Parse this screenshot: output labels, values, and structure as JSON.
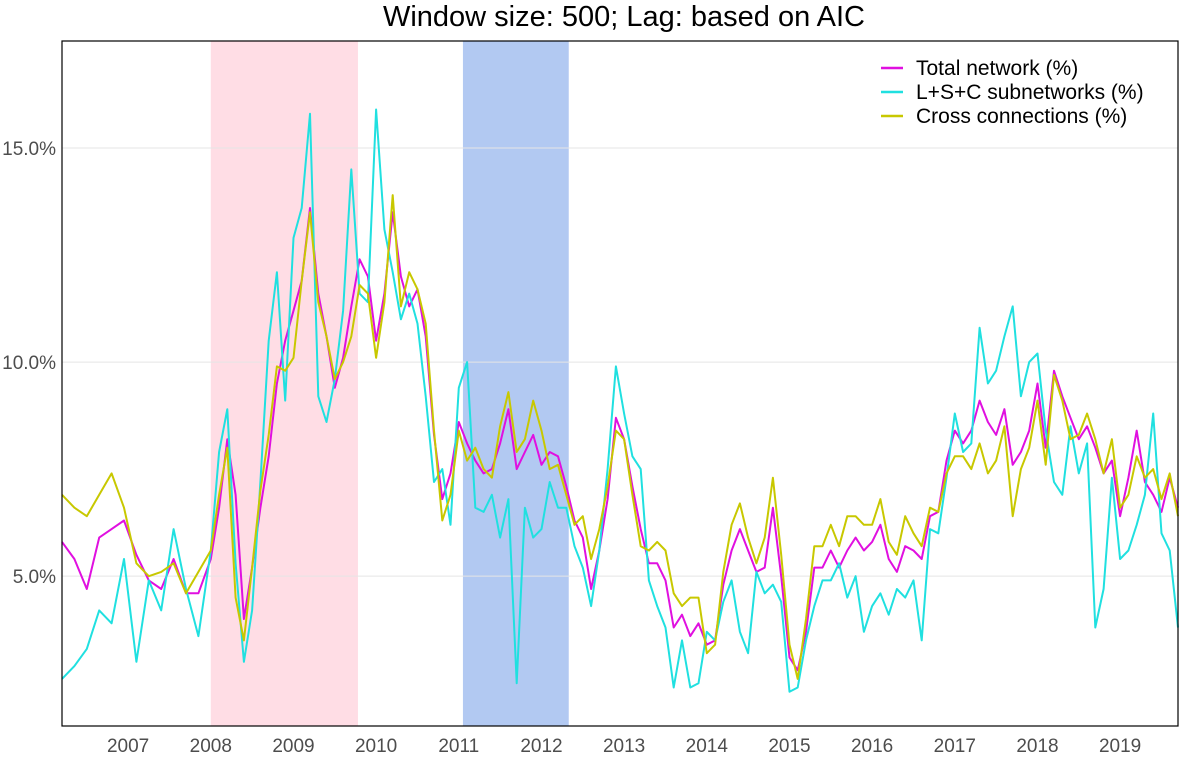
{
  "chart_data": {
    "type": "line",
    "title": "Window size: 500; Lag: based on AIC",
    "xlabel": "",
    "ylabel": "",
    "x_ticks": [
      "2007",
      "2008",
      "2009",
      "2010",
      "2011",
      "2012",
      "2013",
      "2014",
      "2015",
      "2016",
      "2017",
      "2018",
      "2019"
    ],
    "xlim": [
      2006.7,
      2020.2
    ],
    "ylim": [
      1.5,
      17.5
    ],
    "y_ticks": [
      {
        "value": 5,
        "label": "5.0%"
      },
      {
        "value": 10,
        "label": "10.0%"
      },
      {
        "value": 15,
        "label": "15.0%"
      }
    ],
    "grid": true,
    "legend_position": "top-right",
    "shaded_periods": [
      {
        "start": 2008.5,
        "end": 2010.28,
        "color": "#ffdde5"
      },
      {
        "start": 2011.55,
        "end": 2012.83,
        "color": "#b2c9f2"
      }
    ],
    "series": [
      {
        "name": "Total network (%)",
        "color": "#e010e0",
        "x": [
          2006.7,
          2006.85,
          2007.0,
          2007.15,
          2007.3,
          2007.45,
          2007.6,
          2007.75,
          2007.9,
          2008.05,
          2008.2,
          2008.35,
          2008.5,
          2008.6,
          2008.7,
          2008.8,
          2008.9,
          2009.0,
          2009.1,
          2009.2,
          2009.3,
          2009.4,
          2009.5,
          2009.6,
          2009.7,
          2009.8,
          2009.9,
          2010.0,
          2010.1,
          2010.2,
          2010.3,
          2010.4,
          2010.5,
          2010.6,
          2010.7,
          2010.8,
          2010.9,
          2011.0,
          2011.1,
          2011.2,
          2011.3,
          2011.4,
          2011.5,
          2011.6,
          2011.7,
          2011.8,
          2011.9,
          2012.0,
          2012.1,
          2012.2,
          2012.3,
          2012.4,
          2012.5,
          2012.6,
          2012.7,
          2012.8,
          2012.9,
          2013.0,
          2013.1,
          2013.2,
          2013.3,
          2013.4,
          2013.5,
          2013.6,
          2013.7,
          2013.8,
          2013.9,
          2014.0,
          2014.1,
          2014.2,
          2014.3,
          2014.4,
          2014.5,
          2014.6,
          2014.7,
          2014.8,
          2014.9,
          2015.0,
          2015.1,
          2015.2,
          2015.3,
          2015.4,
          2015.5,
          2015.6,
          2015.7,
          2015.8,
          2015.9,
          2016.0,
          2016.1,
          2016.2,
          2016.3,
          2016.4,
          2016.5,
          2016.6,
          2016.7,
          2016.8,
          2016.9,
          2017.0,
          2017.1,
          2017.2,
          2017.3,
          2017.4,
          2017.5,
          2017.6,
          2017.7,
          2017.8,
          2017.9,
          2018.0,
          2018.1,
          2018.2,
          2018.3,
          2018.4,
          2018.5,
          2018.6,
          2018.7,
          2018.8,
          2018.9,
          2019.0,
          2019.1,
          2019.2,
          2019.3,
          2019.4,
          2019.5,
          2019.6,
          2019.7,
          2019.8,
          2019.9,
          2020.0,
          2020.1,
          2020.2
        ],
        "values": [
          5.8,
          5.4,
          4.7,
          5.9,
          6.1,
          6.3,
          5.5,
          4.9,
          4.7,
          5.4,
          4.6,
          4.6,
          5.4,
          6.6,
          8.2,
          6.9,
          4.0,
          5.2,
          6.6,
          7.8,
          9.5,
          10.5,
          11.2,
          11.9,
          13.6,
          11.6,
          10.6,
          9.4,
          10.1,
          11.3,
          12.4,
          12.0,
          10.5,
          11.6,
          13.5,
          12.0,
          11.3,
          11.7,
          10.6,
          8.3,
          6.8,
          7.4,
          8.6,
          8.1,
          7.7,
          7.4,
          7.5,
          8.1,
          8.9,
          7.5,
          7.9,
          8.3,
          7.6,
          7.9,
          7.8,
          7.1,
          6.3,
          5.9,
          4.7,
          5.6,
          6.8,
          8.7,
          8.2,
          7.1,
          6.1,
          5.3,
          5.3,
          4.9,
          3.8,
          4.1,
          3.6,
          3.9,
          3.4,
          3.5,
          4.8,
          5.6,
          6.1,
          5.6,
          5.1,
          5.2,
          6.6,
          5.0,
          3.1,
          2.8,
          3.7,
          5.2,
          5.2,
          5.6,
          5.2,
          5.6,
          5.9,
          5.6,
          5.8,
          6.2,
          5.4,
          5.1,
          5.7,
          5.6,
          5.4,
          6.4,
          6.5,
          7.7,
          8.4,
          8.1,
          8.4,
          9.1,
          8.6,
          8.3,
          8.9,
          7.6,
          7.9,
          8.4,
          9.5,
          8.0,
          9.8,
          9.2,
          8.7,
          8.2,
          8.5,
          8.0,
          7.4,
          7.7,
          6.4,
          7.3,
          8.4,
          7.2,
          6.9,
          6.5,
          7.3,
          6.6
        ]
      },
      {
        "name": "L+S+C subnetworks (%)",
        "color": "#20e0e0",
        "x": [
          2006.7,
          2006.85,
          2007.0,
          2007.15,
          2007.3,
          2007.45,
          2007.6,
          2007.75,
          2007.9,
          2008.05,
          2008.2,
          2008.35,
          2008.5,
          2008.6,
          2008.7,
          2008.8,
          2008.9,
          2009.0,
          2009.1,
          2009.2,
          2009.3,
          2009.4,
          2009.5,
          2009.6,
          2009.7,
          2009.8,
          2009.9,
          2010.0,
          2010.1,
          2010.2,
          2010.3,
          2010.4,
          2010.5,
          2010.6,
          2010.7,
          2010.8,
          2010.9,
          2011.0,
          2011.1,
          2011.2,
          2011.3,
          2011.4,
          2011.5,
          2011.6,
          2011.7,
          2011.8,
          2011.9,
          2012.0,
          2012.1,
          2012.2,
          2012.3,
          2012.4,
          2012.5,
          2012.6,
          2012.7,
          2012.8,
          2012.9,
          2013.0,
          2013.1,
          2013.2,
          2013.3,
          2013.4,
          2013.5,
          2013.6,
          2013.7,
          2013.8,
          2013.9,
          2014.0,
          2014.1,
          2014.2,
          2014.3,
          2014.4,
          2014.5,
          2014.6,
          2014.7,
          2014.8,
          2014.9,
          2015.0,
          2015.1,
          2015.2,
          2015.3,
          2015.4,
          2015.5,
          2015.6,
          2015.7,
          2015.8,
          2015.9,
          2016.0,
          2016.1,
          2016.2,
          2016.3,
          2016.4,
          2016.5,
          2016.6,
          2016.7,
          2016.8,
          2016.9,
          2017.0,
          2017.1,
          2017.2,
          2017.3,
          2017.4,
          2017.5,
          2017.6,
          2017.7,
          2017.8,
          2017.9,
          2018.0,
          2018.1,
          2018.2,
          2018.3,
          2018.4,
          2018.5,
          2018.6,
          2018.7,
          2018.8,
          2018.9,
          2019.0,
          2019.1,
          2019.2,
          2019.3,
          2019.4,
          2019.5,
          2019.6,
          2019.7,
          2019.8,
          2019.9,
          2020.0,
          2020.1,
          2020.2
        ],
        "values": [
          2.6,
          2.9,
          3.3,
          4.2,
          3.9,
          5.4,
          3.0,
          4.9,
          4.2,
          6.1,
          4.7,
          3.6,
          5.6,
          7.9,
          8.9,
          5.3,
          3.0,
          4.2,
          7.2,
          10.5,
          12.1,
          9.1,
          12.9,
          13.6,
          15.8,
          9.2,
          8.6,
          9.6,
          11.2,
          14.5,
          11.6,
          11.4,
          15.9,
          13.1,
          12.1,
          11.0,
          11.6,
          10.9,
          9.2,
          7.2,
          7.5,
          6.2,
          9.4,
          10.0,
          6.6,
          6.5,
          6.9,
          5.9,
          6.8,
          2.5,
          6.6,
          5.9,
          6.1,
          7.2,
          6.6,
          6.6,
          5.7,
          5.2,
          4.3,
          5.6,
          7.5,
          9.9,
          8.8,
          7.8,
          7.5,
          4.9,
          4.3,
          3.8,
          2.4,
          3.5,
          2.4,
          2.5,
          3.7,
          3.5,
          4.4,
          4.9,
          3.7,
          3.2,
          5.1,
          4.6,
          4.8,
          4.4,
          2.3,
          2.4,
          3.5,
          4.3,
          4.9,
          4.9,
          5.3,
          4.5,
          5.0,
          3.7,
          4.3,
          4.6,
          4.1,
          4.7,
          4.5,
          4.9,
          3.5,
          6.1,
          6.0,
          7.3,
          8.8,
          7.9,
          8.1,
          10.8,
          9.5,
          9.8,
          10.6,
          11.3,
          9.2,
          10.0,
          10.2,
          8.4,
          7.2,
          6.9,
          8.5,
          7.4,
          8.1,
          3.8,
          4.7,
          7.3,
          5.4,
          5.6,
          6.2,
          6.9,
          8.8,
          6.0,
          5.6,
          3.8
        ]
      },
      {
        "name": "Cross connections (%)",
        "color": "#c8c800",
        "x": [
          2006.7,
          2006.85,
          2007.0,
          2007.15,
          2007.3,
          2007.45,
          2007.6,
          2007.75,
          2007.9,
          2008.05,
          2008.2,
          2008.35,
          2008.5,
          2008.6,
          2008.7,
          2008.8,
          2008.9,
          2009.0,
          2009.1,
          2009.2,
          2009.3,
          2009.4,
          2009.5,
          2009.6,
          2009.7,
          2009.8,
          2009.9,
          2010.0,
          2010.1,
          2010.2,
          2010.3,
          2010.4,
          2010.5,
          2010.6,
          2010.7,
          2010.8,
          2010.9,
          2011.0,
          2011.1,
          2011.2,
          2011.3,
          2011.4,
          2011.5,
          2011.6,
          2011.7,
          2011.8,
          2011.9,
          2012.0,
          2012.1,
          2012.2,
          2012.3,
          2012.4,
          2012.5,
          2012.6,
          2012.7,
          2012.8,
          2012.9,
          2013.0,
          2013.1,
          2013.2,
          2013.3,
          2013.4,
          2013.5,
          2013.6,
          2013.7,
          2013.8,
          2013.9,
          2014.0,
          2014.1,
          2014.2,
          2014.3,
          2014.4,
          2014.5,
          2014.6,
          2014.7,
          2014.8,
          2014.9,
          2015.0,
          2015.1,
          2015.2,
          2015.3,
          2015.4,
          2015.5,
          2015.6,
          2015.7,
          2015.8,
          2015.9,
          2016.0,
          2016.1,
          2016.2,
          2016.3,
          2016.4,
          2016.5,
          2016.6,
          2016.7,
          2016.8,
          2016.9,
          2017.0,
          2017.1,
          2017.2,
          2017.3,
          2017.4,
          2017.5,
          2017.6,
          2017.7,
          2017.8,
          2017.9,
          2018.0,
          2018.1,
          2018.2,
          2018.3,
          2018.4,
          2018.5,
          2018.6,
          2018.7,
          2018.8,
          2018.9,
          2019.0,
          2019.1,
          2019.2,
          2019.3,
          2019.4,
          2019.5,
          2019.6,
          2019.7,
          2019.8,
          2019.9,
          2020.0,
          2020.1,
          2020.2
        ],
        "values": [
          6.9,
          6.6,
          6.4,
          6.9,
          7.4,
          6.6,
          5.3,
          5.0,
          5.1,
          5.3,
          4.6,
          5.1,
          5.6,
          6.9,
          8.0,
          4.5,
          3.5,
          5.2,
          7.0,
          8.3,
          9.9,
          9.8,
          10.1,
          11.9,
          13.5,
          11.4,
          10.6,
          9.6,
          10.0,
          10.6,
          11.8,
          11.6,
          10.1,
          11.4,
          13.9,
          11.3,
          12.1,
          11.7,
          10.9,
          8.4,
          6.3,
          6.9,
          8.4,
          7.7,
          8.0,
          7.5,
          7.3,
          8.5,
          9.3,
          7.9,
          8.2,
          9.1,
          8.4,
          7.5,
          7.6,
          6.9,
          6.2,
          6.4,
          5.4,
          6.1,
          7.1,
          8.4,
          8.2,
          6.9,
          5.7,
          5.6,
          5.8,
          5.6,
          4.6,
          4.3,
          4.5,
          4.5,
          3.2,
          3.4,
          5.1,
          6.2,
          6.7,
          5.9,
          5.3,
          5.9,
          7.3,
          5.5,
          3.4,
          2.6,
          4.0,
          5.7,
          5.7,
          6.2,
          5.7,
          6.4,
          6.4,
          6.2,
          6.2,
          6.8,
          5.8,
          5.5,
          6.4,
          6.0,
          5.7,
          6.6,
          6.5,
          7.4,
          7.8,
          7.8,
          7.5,
          8.1,
          7.4,
          7.7,
          8.5,
          6.4,
          7.5,
          8.0,
          9.1,
          7.6,
          9.7,
          9.1,
          8.2,
          8.3,
          8.8,
          8.2,
          7.4,
          8.2,
          6.6,
          6.9,
          7.8,
          7.3,
          7.5,
          6.8,
          7.4,
          6.4
        ]
      }
    ]
  }
}
